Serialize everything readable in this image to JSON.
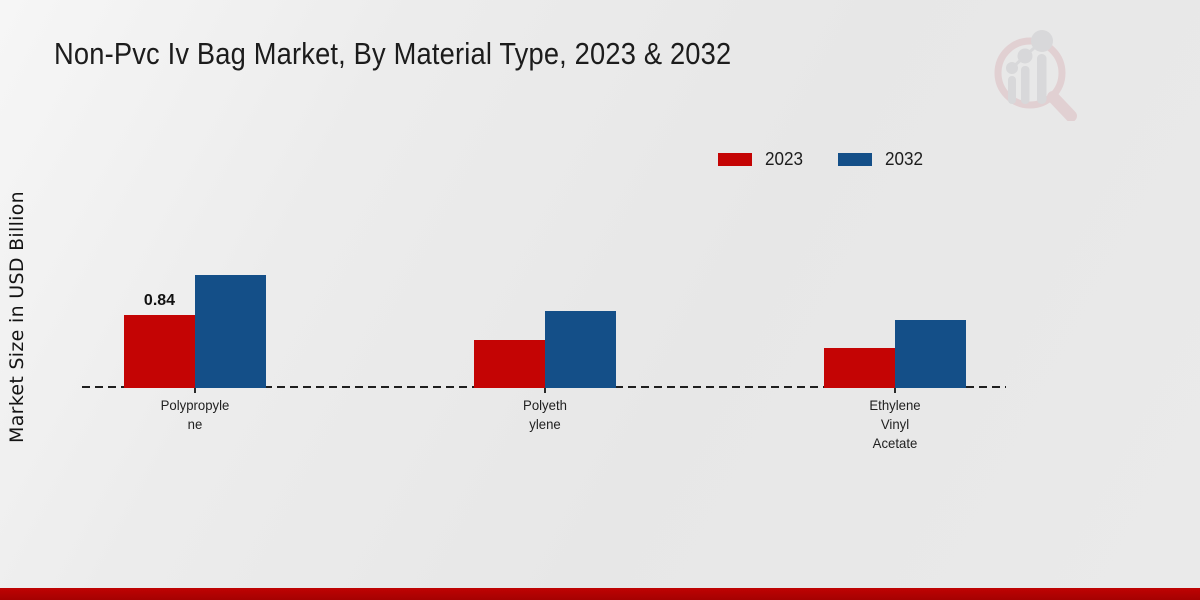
{
  "chart_data": {
    "type": "bar",
    "title": "Non-Pvc Iv Bag Market, By Material Type, 2023 & 2032",
    "ylabel": "Market Size in USD Billion",
    "xlabel": "",
    "categories": [
      "Polypropylene",
      "Polyethylene",
      "Ethylene Vinyl Acetate"
    ],
    "category_label_lines": [
      [
        "Polypropyle",
        "ne"
      ],
      [
        "Polyeth",
        "ylene"
      ],
      [
        "Ethylene",
        "Vinyl",
        "Acetate"
      ]
    ],
    "series": [
      {
        "name": "2023",
        "color": "#c40404",
        "values": [
          0.84,
          0.55,
          0.46
        ],
        "data_labels": [
          "0.84",
          "",
          ""
        ]
      },
      {
        "name": "2032",
        "color": "#144f88",
        "values": [
          1.3,
          0.89,
          0.78
        ],
        "data_labels": [
          "",
          "",
          ""
        ]
      }
    ],
    "ylim": [
      0,
      1.5
    ],
    "grid": false,
    "legend_position": "top-right",
    "baseline_style": "dashed",
    "baseline_color": "#1f1f1f"
  },
  "footer": {
    "band_color_top": "#bf0303",
    "band_color_bottom": "#a40101"
  },
  "watermark": {
    "icon": "magnifier-bar-chart-logo",
    "ring_color": "#dcb9be",
    "bars_color": "#c9c9cd"
  }
}
